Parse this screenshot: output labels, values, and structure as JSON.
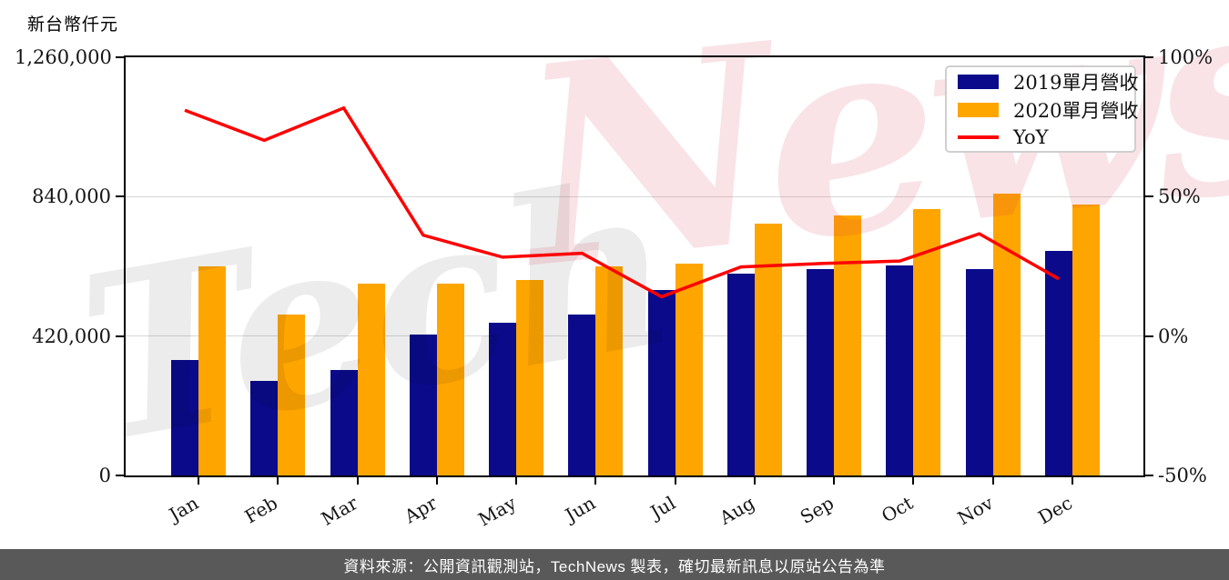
{
  "title": "新台幣仟元",
  "footer": "資料來源：公開資訊觀測站，TechNews 製表，確切最新訊息以原站公告為準",
  "watermark": {
    "part1": "Tech",
    "part2": "News"
  },
  "colors": {
    "navy": "#0a0a8b",
    "orange": "#ffa500",
    "red": "#ff0000",
    "grid": "#d7d7d7",
    "axis": "#000000",
    "footer_bg": "#595959",
    "footer_text": "#ffffff",
    "watermark_gray": "rgba(0,0,0,0.075)",
    "watermark_pink": "rgba(215,60,80,0.14)"
  },
  "legend": [
    {
      "label": "2019單月營收",
      "color": "#0a0a8b",
      "type": "box"
    },
    {
      "label": "2020單月營收",
      "color": "#ffa500",
      "type": "box"
    },
    {
      "label": "YoY",
      "color": "#ff0000",
      "type": "line"
    }
  ],
  "chart_data": {
    "type": "bar",
    "title": "",
    "categories": [
      "Jan",
      "Feb",
      "Mar",
      "Apr",
      "May",
      "Jun",
      "Jul",
      "Aug",
      "Sep",
      "Oct",
      "Nov",
      "Dec"
    ],
    "series": [
      {
        "name": "2019單月營收",
        "key": "2019",
        "type": "bar",
        "axis": "left",
        "color": "#0a0a8b",
        "values": [
          348000,
          285000,
          318000,
          425000,
          460000,
          485000,
          559000,
          608000,
          622000,
          633000,
          622000,
          677000
        ]
      },
      {
        "name": "2020單月營收",
        "key": "2020",
        "type": "bar",
        "axis": "left",
        "color": "#ffa500",
        "values": [
          630000,
          485000,
          578000,
          579000,
          590000,
          629000,
          638000,
          759000,
          784000,
          803000,
          850000,
          816000
        ]
      },
      {
        "name": "YoY",
        "key": "yoy",
        "type": "line",
        "axis": "right",
        "color": "#ff0000",
        "values": [
          81.0,
          70.2,
          81.8,
          36.2,
          28.3,
          29.7,
          14.1,
          24.8,
          26.0,
          26.9,
          36.7,
          20.5
        ]
      }
    ],
    "left_axis": {
      "label": "新台幣仟元",
      "min": 0,
      "max": 1260000,
      "ticks": [
        {
          "label": "0",
          "value": 0
        },
        {
          "label": "420,000",
          "value": 420000
        },
        {
          "label": "840,000",
          "value": 840000
        },
        {
          "label": "1,260,000",
          "value": 1260000
        }
      ],
      "grid_values": [
        420000,
        840000
      ]
    },
    "right_axis": {
      "min": -50,
      "max": 100,
      "ticks": [
        {
          "label": "-50%",
          "value": -50
        },
        {
          "label": "0%",
          "value": 0
        },
        {
          "label": "50%",
          "value": 50
        },
        {
          "label": "100%",
          "value": 100
        }
      ]
    },
    "legend_position": "upper right",
    "grid": "horizontal"
  }
}
